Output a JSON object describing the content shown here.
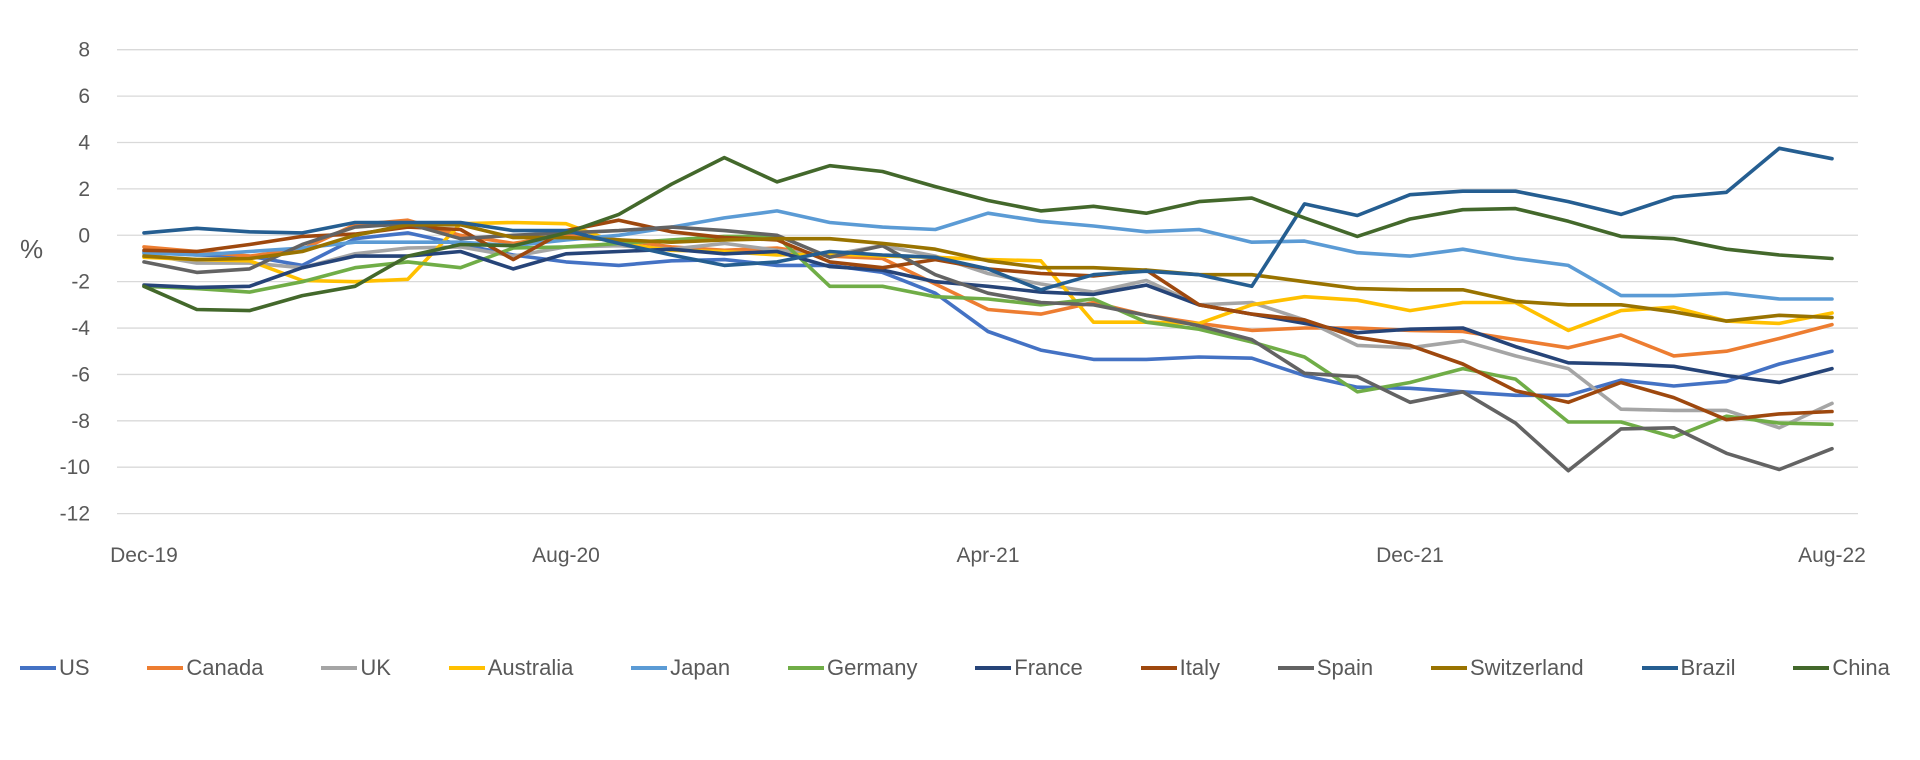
{
  "chart_data": {
    "type": "line",
    "title": "",
    "xlabel": "",
    "ylabel": "%",
    "ylim": [
      -12,
      8
    ],
    "yticks": [
      8,
      6,
      4,
      2,
      0,
      -2,
      -4,
      -6,
      -8,
      -10,
      -12
    ],
    "grid": true,
    "legend_position": "bottom",
    "x": [
      "2019-12",
      "2020-01",
      "2020-02",
      "2020-03",
      "2020-04",
      "2020-05",
      "2020-06",
      "2020-07",
      "2020-08",
      "2020-09",
      "2020-10",
      "2020-11",
      "2020-12",
      "2021-01",
      "2021-02",
      "2021-03",
      "2021-04",
      "2021-05",
      "2021-06",
      "2021-07",
      "2021-08",
      "2021-09",
      "2021-10",
      "2021-11",
      "2021-12",
      "2022-01",
      "2022-02",
      "2022-03",
      "2022-04",
      "2022-05",
      "2022-06",
      "2022-07",
      "2022-08"
    ],
    "xtick_labels": [
      {
        "label": "Dec-19",
        "x": "2019-12"
      },
      {
        "label": "Aug-20",
        "x": "2020-08"
      },
      {
        "label": "Apr-21",
        "x": "2021-04"
      },
      {
        "label": "Dec-21",
        "x": "2021-12"
      },
      {
        "label": "Aug-22",
        "x": "2022-08"
      }
    ],
    "series": [
      {
        "name": "US",
        "color": "#4472C4",
        "values": [
          -0.7,
          -0.85,
          -0.9,
          -1.3,
          -0.15,
          0.1,
          -0.4,
          -0.85,
          -1.15,
          -1.3,
          -1.1,
          -1.05,
          -1.3,
          -1.3,
          -1.6,
          -2.5,
          -4.15,
          -4.95,
          -5.35,
          -5.35,
          -5.25,
          -5.3,
          -6.05,
          -6.55,
          -6.6,
          -6.75,
          -6.9,
          -6.9,
          -6.25,
          -6.5,
          -6.3,
          -5.55,
          -5.0
        ]
      },
      {
        "name": "Canada",
        "color": "#ED7D31",
        "values": [
          -0.5,
          -0.7,
          -0.9,
          -0.6,
          0.45,
          0.65,
          0,
          -0.35,
          0,
          -0.2,
          -0.5,
          -0.65,
          -0.55,
          -0.9,
          -1.0,
          -2.1,
          -3.2,
          -3.4,
          -2.9,
          -3.45,
          -3.8,
          -4.1,
          -4.0,
          -4.0,
          -4.1,
          -4.15,
          -4.5,
          -4.85,
          -4.3,
          -5.2,
          -5.0,
          -4.45,
          -3.85
        ]
      },
      {
        "name": "UK",
        "color": "#A5A5A5",
        "values": [
          -0.8,
          -1.2,
          -1.2,
          -1.4,
          -0.8,
          -0.55,
          -0.5,
          -0.9,
          -0.5,
          -0.45,
          -0.6,
          -0.35,
          -0.65,
          -0.85,
          -0.45,
          -0.9,
          -1.65,
          -2.1,
          -2.45,
          -1.95,
          -3.0,
          -2.9,
          -3.65,
          -4.75,
          -4.85,
          -4.55,
          -5.2,
          -5.75,
          -7.5,
          -7.55,
          -7.55,
          -8.3,
          -7.25
        ]
      },
      {
        "name": "Australia",
        "color": "#FFC000",
        "values": [
          -0.95,
          -1.05,
          -1.1,
          -1.95,
          -2.0,
          -1.9,
          0.5,
          0.55,
          0.5,
          -0.35,
          -0.65,
          -0.7,
          -0.85,
          -0.8,
          -0.9,
          -0.95,
          -1.05,
          -1.1,
          -3.75,
          -3.75,
          -3.8,
          -3.0,
          -2.65,
          -2.8,
          -3.25,
          -2.9,
          -2.9,
          -4.1,
          -3.25,
          -3.1,
          -3.7,
          -3.8,
          -3.35
        ]
      },
      {
        "name": "Japan",
        "color": "#5B9BD5",
        "values": [
          -0.75,
          -0.85,
          -0.7,
          -0.55,
          -0.3,
          -0.3,
          -0.3,
          -0.45,
          -0.2,
          0,
          0.35,
          0.75,
          1.05,
          0.55,
          0.35,
          0.25,
          0.95,
          0.6,
          0.4,
          0.15,
          0.25,
          -0.3,
          -0.25,
          -0.75,
          -0.9,
          -0.6,
          -1.0,
          -1.3,
          -2.6,
          -2.6,
          -2.5,
          -2.75,
          -2.75
        ]
      },
      {
        "name": "Germany",
        "color": "#70AD47",
        "values": [
          -2.2,
          -2.3,
          -2.45,
          -2.0,
          -1.4,
          -1.15,
          -1.4,
          -0.55,
          -0.5,
          -0.35,
          -0.2,
          -0.05,
          -0.05,
          -2.2,
          -2.2,
          -2.65,
          -2.75,
          -3.0,
          -2.75,
          -3.75,
          -4.05,
          -4.6,
          -5.25,
          -6.75,
          -6.35,
          -5.75,
          -6.2,
          -8.05,
          -8.05,
          -8.7,
          -7.8,
          -8.1,
          -8.15
        ]
      },
      {
        "name": "France",
        "color": "#264478",
        "values": [
          -2.15,
          -2.25,
          -2.2,
          -1.4,
          -0.9,
          -0.9,
          -0.7,
          -1.45,
          -0.8,
          -0.7,
          -0.6,
          -0.8,
          -0.7,
          -1.35,
          -1.5,
          -2.0,
          -2.2,
          -2.45,
          -2.55,
          -2.15,
          -3.0,
          -3.4,
          -3.8,
          -4.2,
          -4.05,
          -4.0,
          -4.8,
          -5.5,
          -5.55,
          -5.65,
          -6.05,
          -6.35,
          -5.75
        ]
      },
      {
        "name": "Italy",
        "color": "#9E480E",
        "values": [
          -0.65,
          -0.7,
          -0.4,
          -0.05,
          0.05,
          0.35,
          0.25,
          -1.05,
          0.2,
          0.65,
          0.15,
          -0.1,
          -0.2,
          -1.15,
          -1.4,
          -1.05,
          -1.45,
          -1.65,
          -1.75,
          -1.5,
          -3.0,
          -3.4,
          -3.65,
          -4.4,
          -4.75,
          -5.55,
          -6.7,
          -7.2,
          -6.35,
          -7.0,
          -7.95,
          -7.7,
          -7.6
        ]
      },
      {
        "name": "Spain",
        "color": "#636363",
        "values": [
          -1.15,
          -1.6,
          -1.45,
          -0.4,
          0.35,
          0.5,
          -0.15,
          0,
          0.1,
          0.2,
          0.35,
          0.2,
          0,
          -0.95,
          -0.45,
          -1.7,
          -2.5,
          -2.9,
          -3.0,
          -3.45,
          -3.9,
          -4.5,
          -5.95,
          -6.1,
          -7.2,
          -6.75,
          -8.1,
          -10.15,
          -8.35,
          -8.3,
          -9.4,
          -10.1,
          -9.2
        ]
      },
      {
        "name": "Switzerland",
        "color": "#997300",
        "values": [
          -0.9,
          -1.05,
          -1.0,
          -0.7,
          0,
          0.45,
          0.45,
          -0.1,
          -0.1,
          -0.2,
          -0.3,
          -0.2,
          -0.15,
          -0.15,
          -0.35,
          -0.6,
          -1.1,
          -1.4,
          -1.4,
          -1.5,
          -1.7,
          -1.7,
          -2.0,
          -2.3,
          -2.35,
          -2.35,
          -2.85,
          -3.0,
          -3.0,
          -3.3,
          -3.7,
          -3.45,
          -3.55
        ]
      },
      {
        "name": "Brazil",
        "color": "#255E91",
        "values": [
          0.1,
          0.3,
          0.15,
          0.1,
          0.55,
          0.55,
          0.55,
          0.2,
          0.2,
          -0.35,
          -0.85,
          -1.3,
          -1.15,
          -0.7,
          -0.85,
          -0.95,
          -1.45,
          -2.35,
          -1.7,
          -1.55,
          -1.7,
          -2.2,
          1.35,
          0.85,
          1.75,
          1.9,
          1.9,
          1.45,
          0.9,
          1.65,
          1.85,
          3.75,
          3.3
        ]
      },
      {
        "name": "China",
        "color": "#43682B",
        "values": [
          -2.2,
          -3.2,
          -3.25,
          -2.6,
          -2.2,
          -0.9,
          -0.4,
          -0.45,
          0.1,
          0.9,
          2.2,
          3.35,
          2.3,
          3.0,
          2.75,
          2.1,
          1.5,
          1.05,
          1.25,
          0.95,
          1.45,
          1.6,
          0.75,
          -0.05,
          0.7,
          1.1,
          1.15,
          0.6,
          -0.05,
          -0.15,
          -0.6,
          -0.85,
          -1.0
        ]
      }
    ]
  }
}
